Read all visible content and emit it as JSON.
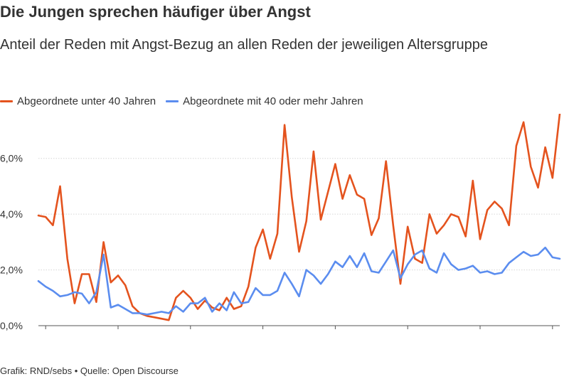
{
  "chart_data": {
    "type": "line",
    "title": "Die Jungen sprechen häufiger über Angst",
    "subtitle": "Anteil der Reden mit Angst-Bezug an allen Reden der jeweiligen Altersgruppe",
    "xlabel": "",
    "ylabel": "",
    "xlim": [
      1949,
      2021
    ],
    "ylim": [
      0,
      7.6
    ],
    "x_ticks": [
      1950,
      1960,
      1970,
      1980,
      1990,
      2000,
      2010,
      2020
    ],
    "y_ticks": [
      {
        "value": 0,
        "label": "0,0%"
      },
      {
        "value": 2,
        "label": "2,0%"
      },
      {
        "value": 4,
        "label": "4,0%"
      },
      {
        "value": 6,
        "label": "6,0%"
      }
    ],
    "grid": "horizontal",
    "legend_position": "top-left",
    "x": [
      1949,
      1950,
      1951,
      1952,
      1953,
      1954,
      1955,
      1956,
      1957,
      1958,
      1959,
      1960,
      1961,
      1962,
      1963,
      1964,
      1965,
      1966,
      1967,
      1968,
      1969,
      1970,
      1971,
      1972,
      1973,
      1974,
      1975,
      1976,
      1977,
      1978,
      1979,
      1980,
      1981,
      1982,
      1983,
      1984,
      1985,
      1986,
      1987,
      1988,
      1989,
      1990,
      1991,
      1992,
      1993,
      1994,
      1995,
      1996,
      1997,
      1998,
      1999,
      2000,
      2001,
      2002,
      2003,
      2004,
      2005,
      2006,
      2007,
      2008,
      2009,
      2010,
      2011,
      2012,
      2013,
      2014,
      2015,
      2016,
      2017,
      2018,
      2019,
      2020,
      2021
    ],
    "series": [
      {
        "name": "Abgeordnete unter 40 Jahren",
        "color": "#e4531e",
        "values": [
          3.95,
          3.9,
          3.6,
          5.0,
          2.4,
          0.8,
          1.85,
          1.85,
          0.85,
          3.0,
          1.55,
          1.8,
          1.45,
          0.7,
          0.45,
          0.35,
          0.3,
          0.25,
          0.2,
          1.0,
          1.25,
          1.0,
          0.6,
          0.9,
          0.65,
          0.55,
          1.0,
          0.6,
          0.7,
          1.4,
          2.8,
          3.45,
          2.4,
          3.3,
          7.2,
          4.6,
          2.65,
          3.75,
          6.25,
          3.8,
          4.8,
          5.8,
          4.55,
          5.4,
          4.7,
          4.55,
          3.25,
          3.85,
          5.9,
          3.6,
          1.5,
          3.55,
          2.4,
          2.25,
          4.0,
          3.3,
          3.6,
          4.0,
          3.9,
          3.2,
          5.2,
          3.1,
          4.15,
          4.45,
          4.2,
          3.6,
          6.45,
          7.3,
          5.7,
          4.95,
          6.4,
          5.3,
          7.6
        ]
      },
      {
        "name": "Abgeordnete mit 40 oder mehr Jahren",
        "color": "#5b8def",
        "values": [
          1.6,
          1.4,
          1.25,
          1.05,
          1.1,
          1.2,
          1.15,
          0.8,
          1.2,
          2.55,
          0.65,
          0.75,
          0.6,
          0.45,
          0.45,
          0.4,
          0.45,
          0.5,
          0.45,
          0.7,
          0.5,
          0.8,
          0.8,
          1.0,
          0.5,
          0.8,
          0.55,
          1.2,
          0.8,
          0.85,
          1.35,
          1.1,
          1.1,
          1.25,
          1.9,
          1.5,
          1.05,
          2.0,
          1.8,
          1.5,
          1.85,
          2.3,
          2.1,
          2.5,
          2.1,
          2.6,
          1.95,
          1.9,
          2.3,
          2.7,
          1.7,
          2.2,
          2.55,
          2.7,
          2.05,
          1.9,
          2.6,
          2.2,
          2.0,
          2.05,
          2.15,
          1.9,
          1.95,
          1.85,
          1.9,
          2.25,
          2.45,
          2.65,
          2.5,
          2.55,
          2.8,
          2.45,
          2.4
        ]
      }
    ]
  },
  "source": "Grafik: RND/sebs • Quelle: Open Discourse"
}
